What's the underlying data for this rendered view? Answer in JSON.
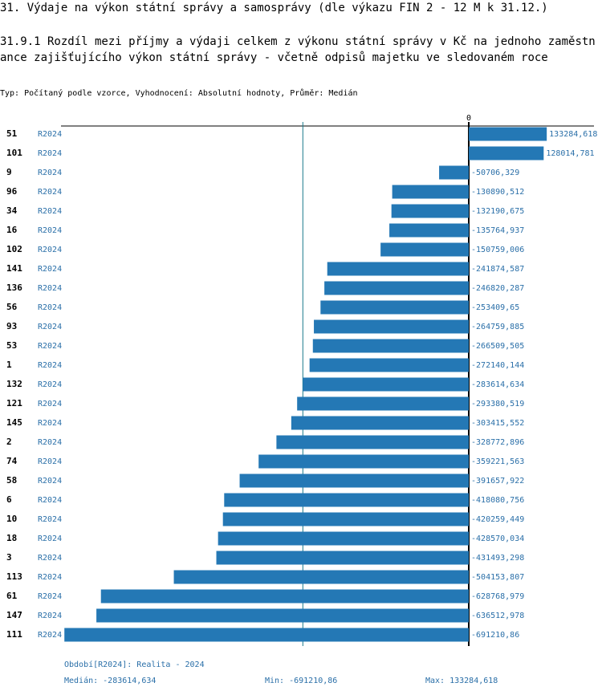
{
  "chart_data": {
    "type": "bar",
    "orientation": "horizontal",
    "title": "31. Výdaje na výkon státní správy a samosprávy (dle výkazu FIN 2 - 12 M k 31.12.)",
    "subtitle": "31.9.1 Rozdíl mezi příjmy a výdaji celkem z výkonu státní správy v Kč na jednoho zaměstnance zajišťujícího výkon státní správy - včetně odpisů majetku ve sledovaném roce",
    "note": "Typ: Počítaný podle vzorce, Vyhodnocení: Absolutní hodnoty, Průměr: Medián",
    "categories": [
      "51",
      "101",
      "9",
      "96",
      "34",
      "16",
      "102",
      "141",
      "136",
      "56",
      "93",
      "53",
      "1",
      "132",
      "121",
      "145",
      "2",
      "74",
      "58",
      "6",
      "10",
      "18",
      "3",
      "113",
      "61",
      "147",
      "111"
    ],
    "series": [
      {
        "name": "R2024",
        "color": "#2478b5",
        "values": [
          133284.618,
          128014.781,
          -50706.329,
          -130890.512,
          -132190.675,
          -135764.937,
          -150759.006,
          -241874.587,
          -246820.287,
          -253409.65,
          -264759.885,
          -266509.505,
          -272140.144,
          -283614.634,
          -293380.519,
          -303415.552,
          -328772.896,
          -359221.563,
          -391657.922,
          -418080.756,
          -420259.449,
          -428570.034,
          -431493.298,
          -504153.807,
          -628768.979,
          -636512.978,
          -691210.86
        ],
        "value_labels": [
          "133284,618",
          "128014,781",
          "-50706,329",
          "-130890,512",
          "-132190,675",
          "-135764,937",
          "-150759,006",
          "-241874,587",
          "-246820,287",
          "-253409,65",
          "-264759,885",
          "-266509,505",
          "-272140,144",
          "-283614,634",
          "-293380,519",
          "-303415,552",
          "-328772,896",
          "-359221,563",
          "-391657,922",
          "-418080,756",
          "-420259,449",
          "-428570,034",
          "-431493,298",
          "-504153,807",
          "-628768,979",
          "-636512,978",
          "-691210,86"
        ]
      }
    ],
    "xlim": [
      -697000,
      214000
    ],
    "xticks": [
      0
    ],
    "median": {
      "value": -283614.634,
      "label": "Medián: -283614,634"
    },
    "period": "Období[R2024]: Realita - 2024",
    "min_label": "Min: -691210,86",
    "max_label": "Max: 133284,618"
  }
}
